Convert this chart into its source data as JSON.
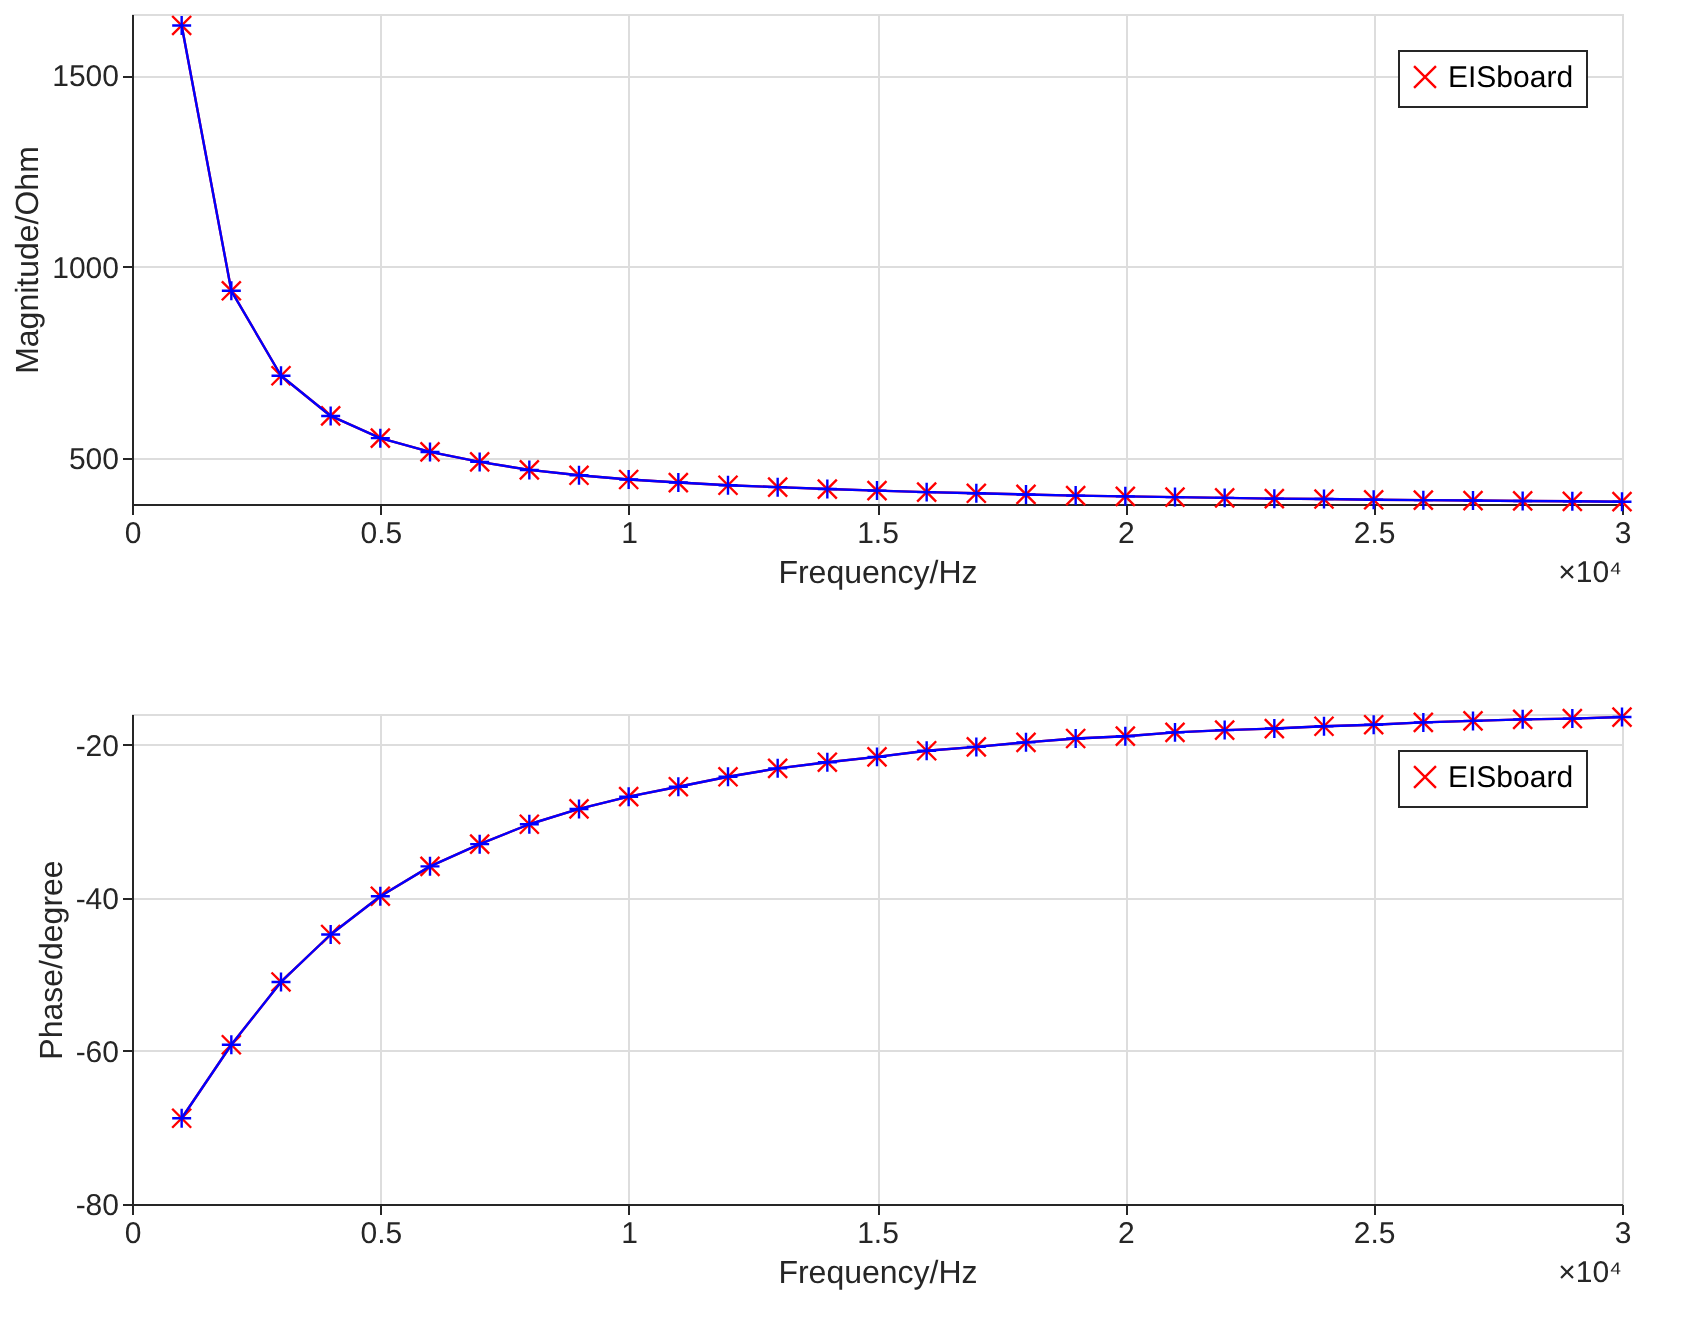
{
  "chart_data": [
    {
      "type": "line",
      "xlabel": "Frequency/Hz",
      "ylabel": "Magnitude/Ohm",
      "x": [
        0.1,
        0.2,
        0.3,
        0.4,
        0.5,
        0.6,
        0.7,
        0.8,
        0.9,
        1.0,
        1.1,
        1.2,
        1.3,
        1.4,
        1.5,
        1.6,
        1.7,
        1.8,
        1.9,
        2.0,
        2.1,
        2.2,
        2.3,
        2.4,
        2.5,
        2.6,
        2.7,
        2.8,
        2.9,
        3.0
      ],
      "series": [
        {
          "name": "EISboard",
          "color": "#ff0000",
          "marker": "x",
          "values": [
            1630,
            937,
            715,
            610,
            552,
            516,
            490,
            469,
            455,
            444,
            436,
            429,
            424,
            419,
            415,
            411,
            408,
            405,
            402,
            400,
            398,
            396,
            394,
            393,
            391,
            390,
            389,
            388,
            387,
            386
          ]
        },
        {
          "color": "#0000ff",
          "marker": "cross",
          "values": [
            1630,
            937,
            715,
            610,
            552,
            516,
            490,
            469,
            455,
            444,
            436,
            429,
            424,
            419,
            415,
            411,
            408,
            405,
            402,
            400,
            398,
            396,
            394,
            393,
            391,
            390,
            389,
            388,
            387,
            386
          ]
        }
      ],
      "xlim": [
        0,
        3
      ],
      "xticks": [
        0,
        0.5,
        1,
        1.5,
        2,
        2.5,
        3
      ],
      "ylim": [
        380,
        1660
      ],
      "yticks": [
        500,
        1000,
        1500
      ],
      "grid": true,
      "legend": "top right",
      "annotations": [
        "×10⁴"
      ]
    },
    {
      "type": "line",
      "xlabel": "Frequency/Hz",
      "ylabel": "Phase/degree",
      "x": [
        0.1,
        0.2,
        0.3,
        0.4,
        0.5,
        0.6,
        0.7,
        0.8,
        0.9,
        1.0,
        1.1,
        1.2,
        1.3,
        1.4,
        1.5,
        1.6,
        1.7,
        1.8,
        1.9,
        2.0,
        2.1,
        2.2,
        2.3,
        2.4,
        2.5,
        2.6,
        2.7,
        2.8,
        2.9,
        3.0
      ],
      "series": [
        {
          "name": "EISboard",
          "color": "#ff0000",
          "marker": "x",
          "values": [
            -68.8,
            -59.2,
            -51,
            -44.8,
            -39.8,
            -35.9,
            -33,
            -30.4,
            -28.4,
            -26.8,
            -25.5,
            -24.2,
            -23.1,
            -22.3,
            -21.6,
            -20.8,
            -20.3,
            -19.7,
            -19.2,
            -18.9,
            -18.4,
            -18.1,
            -17.9,
            -17.6,
            -17.4,
            -17.1,
            -16.9,
            -16.7,
            -16.6,
            -16.4
          ]
        },
        {
          "color": "#0000ff",
          "marker": "cross",
          "values": [
            -68.8,
            -59.2,
            -51,
            -44.8,
            -39.8,
            -35.9,
            -33,
            -30.4,
            -28.4,
            -26.8,
            -25.5,
            -24.2,
            -23.1,
            -22.3,
            -21.6,
            -20.8,
            -20.3,
            -19.7,
            -19.2,
            -18.9,
            -18.4,
            -18.1,
            -17.9,
            -17.6,
            -17.4,
            -17.1,
            -16.9,
            -16.7,
            -16.6,
            -16.4
          ]
        }
      ],
      "xlim": [
        0,
        3
      ],
      "xticks": [
        0,
        0.5,
        1,
        1.5,
        2,
        2.5,
        3
      ],
      "ylim": [
        -80,
        -16
      ],
      "yticks": [
        -80,
        -60,
        -40,
        -20
      ],
      "grid": true,
      "legend": "top right",
      "annotations": [
        "×10⁴"
      ]
    }
  ]
}
